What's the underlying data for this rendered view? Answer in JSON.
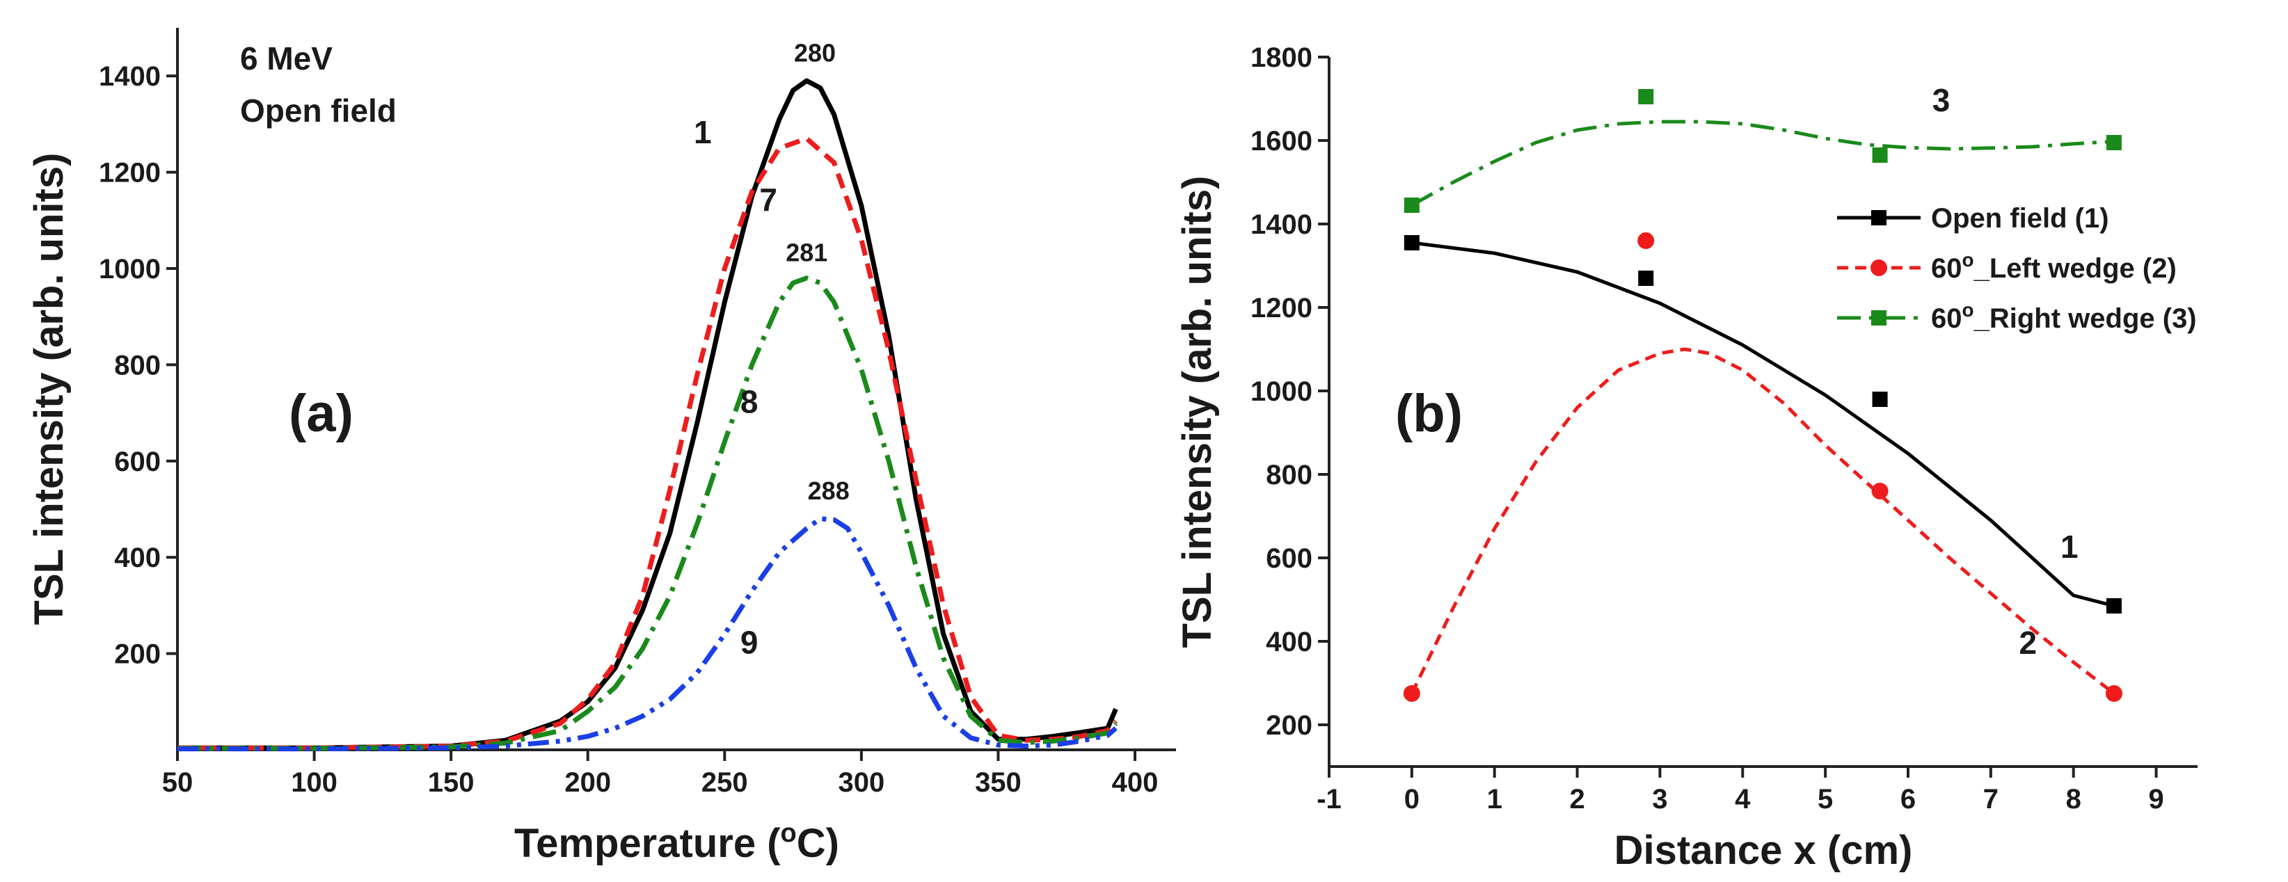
{
  "chart_data": [
    {
      "type": "line",
      "panel_label": "(a)",
      "xlabel": "Temperature (",
      "xlabel_sup": "o",
      "xlabel_end": "C)",
      "ylabel": "TSL intensity (arb. units)",
      "xlim": [
        50,
        415
      ],
      "ylim": [
        0,
        1500
      ],
      "xticks": [
        50,
        100,
        150,
        200,
        250,
        300,
        350,
        400
      ],
      "yticks": [
        200,
        400,
        600,
        800,
        1000,
        1200,
        1400
      ],
      "notes": [
        "6 MeV",
        "Open field"
      ],
      "grid": false,
      "series": [
        {
          "tag": "1",
          "color": "#000000",
          "dash": "solid",
          "x": [
            50,
            100,
            150,
            170,
            190,
            200,
            210,
            220,
            230,
            240,
            250,
            260,
            270,
            275,
            280,
            285,
            290,
            300,
            310,
            320,
            330,
            340,
            350,
            360,
            370,
            380,
            390,
            393
          ],
          "y": [
            4,
            4,
            8,
            20,
            60,
            100,
            170,
            290,
            450,
            680,
            930,
            1150,
            1310,
            1370,
            1390,
            1375,
            1320,
            1130,
            860,
            520,
            240,
            80,
            22,
            22,
            28,
            36,
            45,
            85
          ]
        },
        {
          "tag": "7",
          "color": "#ee1c1c",
          "dash": "22 12",
          "x": [
            50,
            100,
            150,
            170,
            190,
            200,
            210,
            220,
            230,
            240,
            250,
            260,
            270,
            280,
            290,
            300,
            310,
            320,
            330,
            340,
            350,
            360,
            370,
            380,
            390,
            393
          ],
          "y": [
            4,
            4,
            8,
            18,
            55,
            105,
            180,
            320,
            540,
            780,
            1000,
            1160,
            1250,
            1270,
            1220,
            1060,
            830,
            560,
            300,
            110,
            30,
            20,
            22,
            28,
            40,
            60
          ]
        },
        {
          "tag": "8",
          "color": "#1a8a1a",
          "dash": "34 12 6 12",
          "x": [
            50,
            100,
            150,
            170,
            190,
            200,
            210,
            220,
            230,
            240,
            250,
            260,
            270,
            275,
            280,
            285,
            290,
            300,
            310,
            320,
            330,
            340,
            350,
            360,
            370,
            380,
            390,
            393
          ],
          "y": [
            3,
            3,
            6,
            14,
            40,
            80,
            130,
            210,
            320,
            470,
            640,
            800,
            930,
            970,
            980,
            970,
            930,
            790,
            600,
            380,
            190,
            70,
            20,
            15,
            18,
            25,
            35,
            55
          ]
        },
        {
          "tag": "9",
          "color": "#1a3fe6",
          "dash": "30 10 6 10 6 10",
          "x": [
            50,
            100,
            150,
            170,
            190,
            200,
            210,
            220,
            230,
            240,
            250,
            260,
            270,
            280,
            285,
            290,
            295,
            300,
            310,
            320,
            330,
            340,
            350,
            360,
            370,
            380,
            390,
            393
          ],
          "y": [
            2,
            2,
            4,
            8,
            18,
            28,
            45,
            70,
            105,
            160,
            240,
            330,
            410,
            460,
            480,
            478,
            460,
            410,
            300,
            170,
            70,
            25,
            10,
            8,
            10,
            18,
            30,
            45
          ]
        }
      ],
      "peak_labels": [
        {
          "text": "280",
          "x": 283,
          "y": 1430
        },
        {
          "text": "281",
          "x": 280,
          "y": 1015
        },
        {
          "text": "288",
          "x": 288,
          "y": 520
        }
      ],
      "curve_tags": [
        {
          "text": "1",
          "x": 242,
          "y": 1260
        },
        {
          "text": "7",
          "x": 266,
          "y": 1120
        },
        {
          "text": "8",
          "x": 259,
          "y": 700
        },
        {
          "text": "9",
          "x": 259,
          "y": 200
        }
      ]
    },
    {
      "type": "scatter",
      "panel_label": "(b)",
      "xlabel": "Distance x (cm)",
      "ylabel": "TSL intensity (arb. units)",
      "xlim": [
        -1,
        9.5
      ],
      "ylim": [
        100,
        1800
      ],
      "xticks": [
        -1,
        0,
        1,
        2,
        3,
        4,
        5,
        6,
        7,
        8,
        9
      ],
      "yticks": [
        200,
        400,
        600,
        800,
        1000,
        1200,
        1400,
        1600,
        1800
      ],
      "grid": false,
      "legend_position": "upper-right",
      "series": [
        {
          "name": "Open field (1)",
          "tag": "1",
          "color": "#000000",
          "dash": "solid",
          "marker": "square",
          "x": [
            0,
            2.83,
            5.66,
            8.49
          ],
          "y": [
            1355,
            1270,
            980,
            485
          ],
          "fit_x": [
            0,
            1,
            2,
            3,
            4,
            5,
            6,
            7,
            8,
            8.49
          ],
          "fit_y": [
            1355,
            1330,
            1285,
            1210,
            1110,
            990,
            850,
            690,
            510,
            485
          ]
        },
        {
          "name": "60",
          "name_sup": "o",
          "name_rest": "_Left wedge (2)",
          "tag": "2",
          "color": "#ee1c1c",
          "dash": "16 10",
          "marker": "circle",
          "x": [
            0,
            2.83,
            5.66,
            8.49
          ],
          "y": [
            275,
            1360,
            760,
            275
          ],
          "fit_x": [
            0,
            0.5,
            1,
            1.5,
            2,
            2.5,
            3,
            3.3,
            3.6,
            4,
            4.5,
            5,
            5.5,
            6,
            6.5,
            7,
            7.5,
            8,
            8.49
          ],
          "fit_y": [
            275,
            480,
            670,
            830,
            960,
            1050,
            1090,
            1100,
            1090,
            1050,
            970,
            870,
            780,
            690,
            600,
            515,
            430,
            350,
            275
          ]
        },
        {
          "name": "60",
          "name_sup": "o",
          "name_rest": "_Right wedge (3)",
          "tag": "3",
          "color": "#1a8a1a",
          "dash": "34 12 6 12",
          "marker": "square",
          "x": [
            0,
            2.83,
            5.66,
            8.49
          ],
          "y": [
            1445,
            1705,
            1565,
            1595
          ],
          "fit_x": [
            0,
            0.5,
            1,
            1.5,
            2,
            2.5,
            3,
            3.5,
            4,
            4.5,
            5,
            5.5,
            6,
            6.5,
            7,
            7.5,
            8,
            8.49
          ],
          "fit_y": [
            1445,
            1500,
            1550,
            1595,
            1625,
            1640,
            1645,
            1645,
            1640,
            1625,
            1605,
            1590,
            1583,
            1580,
            1582,
            1585,
            1592,
            1598
          ]
        }
      ],
      "curve_tags": [
        {
          "text": "1",
          "x": 7.95,
          "y": 600
        },
        {
          "text": "2",
          "x": 7.45,
          "y": 370
        },
        {
          "text": "3",
          "x": 6.4,
          "y": 1670
        }
      ]
    }
  ]
}
